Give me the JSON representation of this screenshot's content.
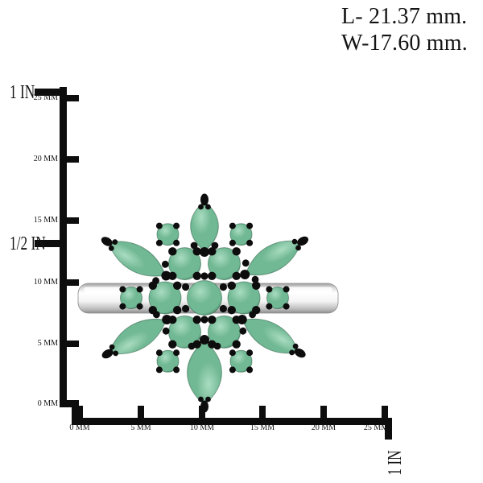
{
  "measurements": {
    "length": "L- 21.37 mm.",
    "width": "W-17.60 mm."
  },
  "vertical_ruler": {
    "inch_labels": [
      "1 IN",
      "1/2 IN"
    ],
    "mm_labels": [
      "25 MM",
      "20 MM",
      "15 MM",
      "10 MM",
      "5 MM",
      "0 MM"
    ]
  },
  "horizontal_ruler": {
    "mm_labels": [
      "0 MM",
      "5 MM",
      "10 MM",
      "15 MM",
      "20 MM",
      "25 MM"
    ],
    "inch_label": "1 IN"
  },
  "product": {
    "kind": "silver-emerald-cluster-ring",
    "stone_color": "#71b894",
    "stone_highlight": "#a9dcc1",
    "stone_shadow": "#417e61",
    "prong_color": "#0d0d0d",
    "metal_light": "#ffffff",
    "metal_mid": "#d9d9d9",
    "metal_dark": "#8e8e8e",
    "ruler_color": "#0d0d0d"
  }
}
